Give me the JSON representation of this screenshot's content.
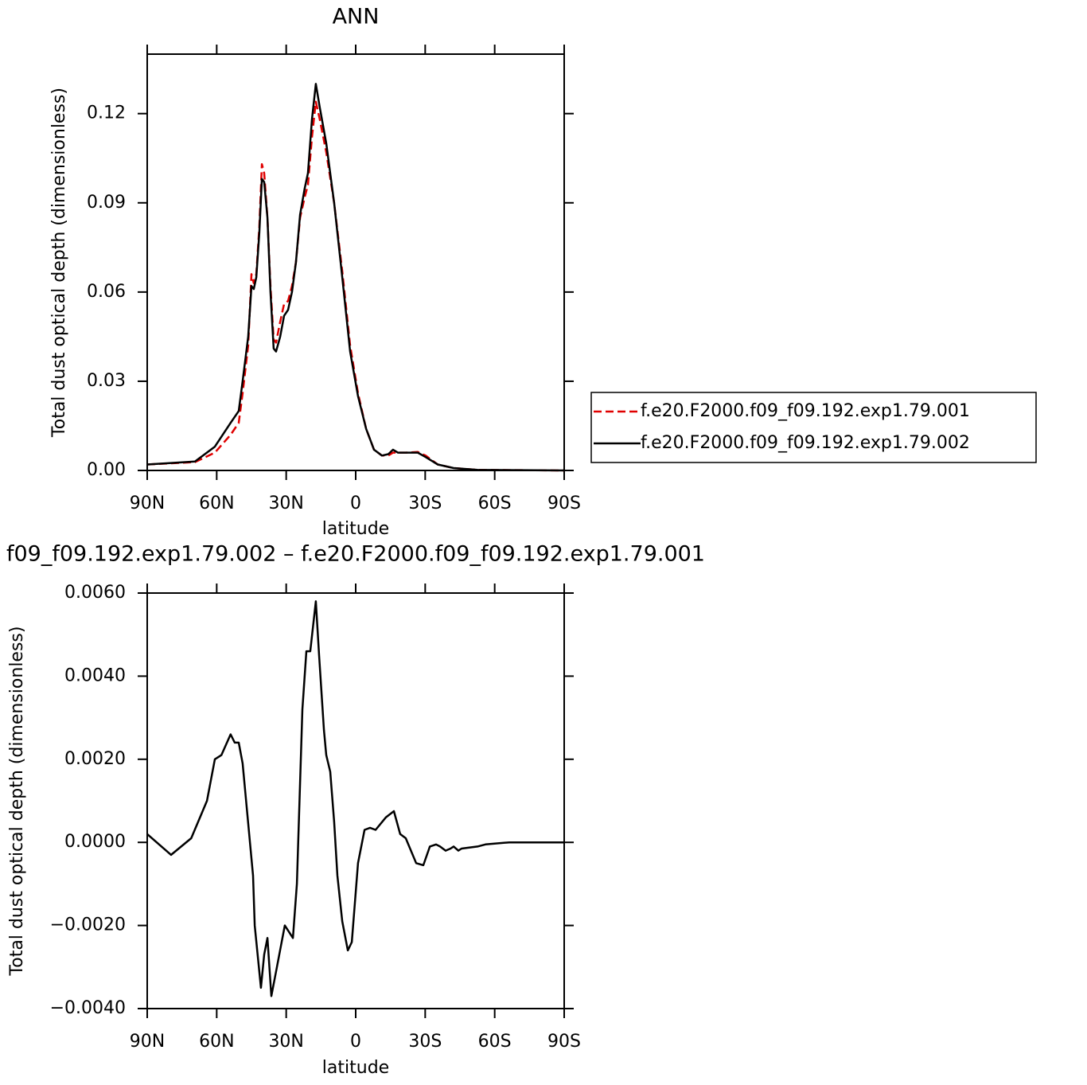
{
  "chart_data": [
    {
      "type": "line",
      "title": "ANN",
      "xlabel": "latitude",
      "ylabel": "Total dust optical depth (dimensionless)",
      "xlim": [
        90,
        -90
      ],
      "xticks": [
        {
          "value": 90,
          "label": "90N"
        },
        {
          "value": 60,
          "label": "60N"
        },
        {
          "value": 30,
          "label": "30N"
        },
        0,
        {
          "value": -30,
          "label": "30S"
        },
        {
          "value": -60,
          "label": "60S"
        },
        {
          "value": -90,
          "label": "90S"
        }
      ],
      "ylim": [
        0,
        0.14
      ],
      "yticks": [
        {
          "value": 0,
          "label": "0.00"
        },
        0.03,
        0.06,
        0.09,
        0.12
      ],
      "legend": "right",
      "x": [
        90,
        69.4,
        60.8,
        54,
        50.5,
        48.8,
        46.4,
        45,
        44,
        42.9,
        41.6,
        40.5,
        39.5,
        38.1,
        36.8,
        35.4,
        34.4,
        32.6,
        30.9,
        29.2,
        27.5,
        25.8,
        24,
        22,
        20.6,
        18.9,
        17.2,
        15.5,
        12.7,
        9.3,
        5.8,
        2.4,
        -1,
        -4.5,
        -7.9,
        -11.3,
        -14.1,
        -16.1,
        -18.2,
        -21.6,
        -26.8,
        -30.2,
        -35.4,
        -42.3,
        -52.6,
        -90
      ],
      "series": [
        {
          "name": "f.e20.F2000.f09_f09.192.exp1.79.001",
          "color": "#e00000",
          "line_style": "dashed",
          "values": [
            0.002,
            0.0028,
            0.006,
            0.012,
            0.016,
            0.026,
            0.042,
            0.066,
            0.063,
            0.066,
            0.082,
            0.103,
            0.1,
            0.085,
            0.062,
            0.044,
            0.043,
            0.05,
            0.056,
            0.057,
            0.062,
            0.07,
            0.085,
            0.092,
            0.096,
            0.112,
            0.124,
            0.118,
            0.107,
            0.09,
            0.067,
            0.042,
            0.026,
            0.014,
            0.007,
            0.005,
            0.005,
            0.006,
            0.006,
            0.006,
            0.0062,
            0.005,
            0.002,
            0.0008,
            0.0002,
            0
          ]
        },
        {
          "name": "f.e20.F2000.f09_f09.192.exp1.79.002",
          "color": "#000000",
          "line_style": "solid",
          "values": [
            0.002,
            0.003,
            0.008,
            0.016,
            0.02,
            0.03,
            0.045,
            0.062,
            0.061,
            0.065,
            0.08,
            0.098,
            0.097,
            0.085,
            0.06,
            0.041,
            0.04,
            0.045,
            0.052,
            0.054,
            0.06,
            0.07,
            0.086,
            0.095,
            0.1,
            0.118,
            0.13,
            0.122,
            0.11,
            0.09,
            0.065,
            0.04,
            0.025,
            0.014,
            0.007,
            0.005,
            0.0055,
            0.007,
            0.006,
            0.006,
            0.006,
            0.0045,
            0.002,
            0.0008,
            0.0002,
            0
          ]
        }
      ]
    },
    {
      "type": "line",
      "title": "f09_f09.192.exp1.79.002 – f.e20.F2000.f09_f09.192.exp1.79.001",
      "xlabel": "latitude",
      "ylabel": "Total dust optical depth (dimensionless)",
      "xlim": [
        90,
        -90
      ],
      "xticks": [
        {
          "value": 90,
          "label": "90N"
        },
        {
          "value": 60,
          "label": "60N"
        },
        {
          "value": 30,
          "label": "30N"
        },
        0,
        {
          "value": -30,
          "label": "30S"
        },
        {
          "value": -60,
          "label": "60S"
        },
        {
          "value": -90,
          "label": "90S"
        }
      ],
      "ylim": [
        -0.004,
        0.006
      ],
      "yticks": [
        {
          "value": -0.004,
          "label": "−0.0040"
        },
        {
          "value": -0.002,
          "label": "−0.0020"
        },
        {
          "value": 0,
          "label": "0.0000"
        },
        {
          "value": 0.002,
          "label": "0.0020"
        },
        {
          "value": 0.004,
          "label": "0.0040"
        },
        {
          "value": 0.006,
          "label": "0.0060"
        }
      ],
      "x": [
        90,
        79.7,
        71,
        64.2,
        60.8,
        58,
        54,
        52.2,
        50.5,
        48.8,
        44.3,
        43.6,
        40.9,
        39.5,
        38.1,
        36.4,
        34,
        30.6,
        27.1,
        25.4,
        23,
        21.3,
        19.6,
        17.2,
        15.8,
        13.7,
        12.7,
        11,
        9.3,
        7.9,
        5.8,
        3.4,
        1.7,
        -1,
        -3.8,
        -6.2,
        -8.6,
        -13,
        -16.5,
        -19.2,
        -21.6,
        -26.1,
        -29.2,
        -32,
        -34.7,
        -36.4,
        -38.8,
        -40.9,
        -42.3,
        -44.3,
        -45.7,
        -52.6,
        -56,
        -66.3,
        -90
      ],
      "series": [
        {
          "color": "#000000",
          "line_style": "solid",
          "values": [
            0.0002,
            -0.0003,
            0.0001,
            0.001,
            0.002,
            0.0021,
            0.0026,
            0.0024,
            0.0024,
            0.0019,
            -0.0008,
            -0.002,
            -0.0035,
            -0.0027,
            -0.0023,
            -0.0037,
            -0.003,
            -0.002,
            -0.0023,
            -0.001,
            0.0032,
            0.0046,
            0.0046,
            0.0058,
            0.0045,
            0.0027,
            0.0021,
            0.0017,
            0.0005,
            -0.0008,
            -0.0019,
            -0.0026,
            -0.0024,
            -0.0005,
            0.0003,
            0.00035,
            0.0003,
            0.0006,
            0.00075,
            0.0002,
            0.0001,
            -0.0005,
            -0.00055,
            -0.0001,
            -5e-05,
            -0.0001,
            -0.0002,
            -0.00015,
            -0.0001,
            -0.0002,
            -0.00015,
            -0.0001,
            -5e-05,
            0,
            0
          ]
        }
      ]
    }
  ]
}
